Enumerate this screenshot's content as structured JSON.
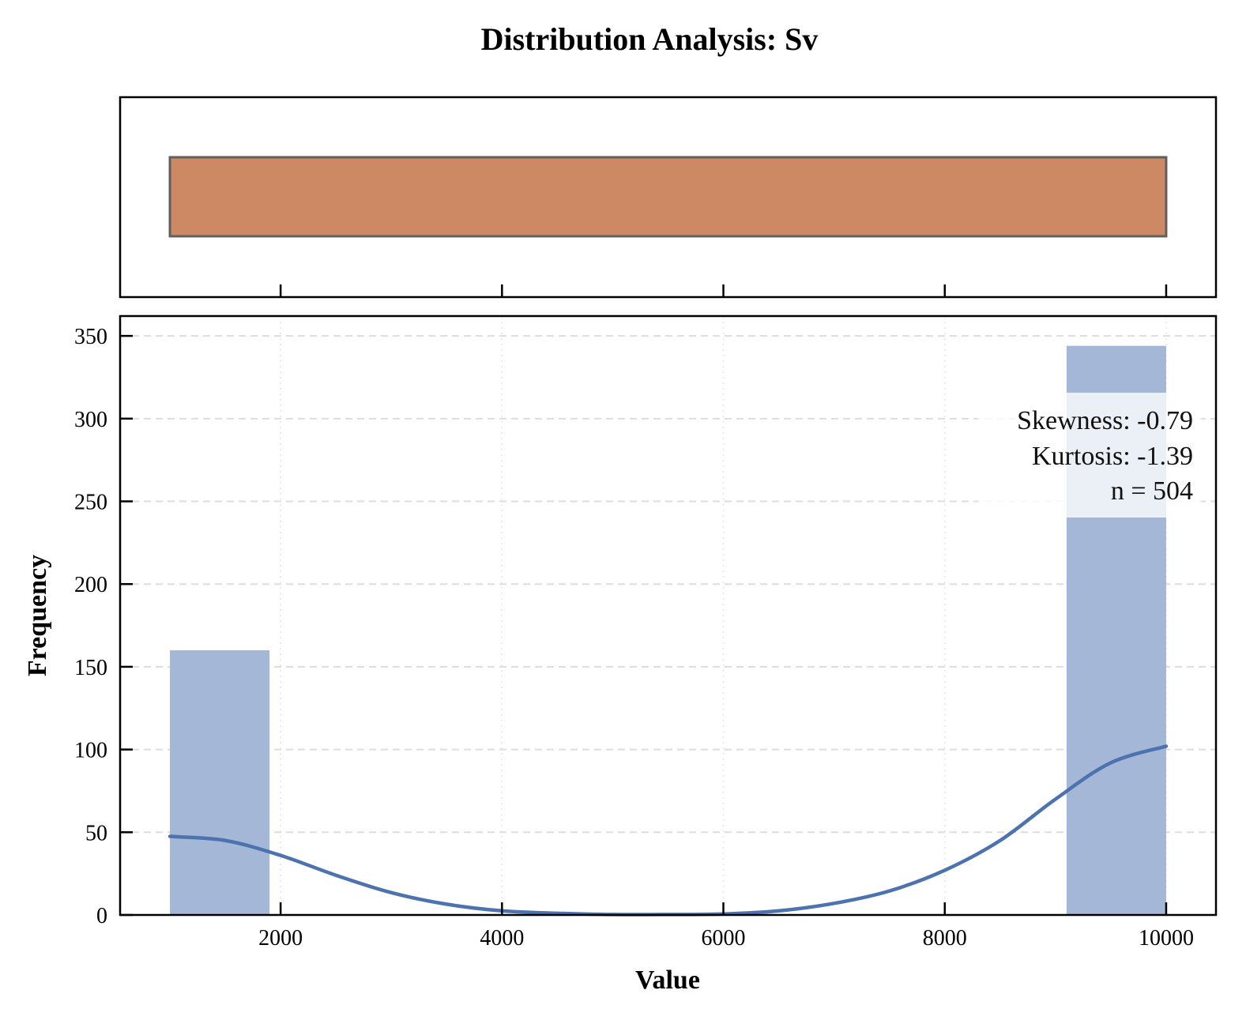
{
  "chart_data": [
    {
      "type": "box",
      "box": {
        "q1": 1000,
        "median": 10000,
        "q3": 10000,
        "whisker_low": 1000,
        "whisker_high": 10000
      },
      "xlim": [
        550,
        10450
      ],
      "colors": {
        "fill": "#CC8963",
        "edge": "#5F5F5F"
      }
    },
    {
      "type": "bar",
      "title": "Distribution Analysis: Sv",
      "xlabel": "Value",
      "ylabel": "Frequency",
      "xlim": [
        550,
        10450
      ],
      "ylim": [
        0,
        362
      ],
      "x_ticks": [
        2000,
        4000,
        6000,
        8000,
        10000
      ],
      "y_ticks": [
        0,
        50,
        100,
        150,
        200,
        250,
        300,
        350
      ],
      "grid": true,
      "bars": [
        {
          "x0": 1000,
          "x1": 1900,
          "count": 160
        },
        {
          "x0": 9100,
          "x1": 10000,
          "count": 344
        }
      ],
      "kde": [
        [
          1000,
          47.5
        ],
        [
          1500,
          45
        ],
        [
          2000,
          36
        ],
        [
          2500,
          24
        ],
        [
          3000,
          13.5
        ],
        [
          3500,
          6.5
        ],
        [
          4000,
          2.5
        ],
        [
          4500,
          1
        ],
        [
          5000,
          0.3
        ],
        [
          5500,
          0.3
        ],
        [
          6000,
          0.6
        ],
        [
          6500,
          2.5
        ],
        [
          7000,
          7
        ],
        [
          7500,
          14.5
        ],
        [
          8000,
          27
        ],
        [
          8500,
          45
        ],
        [
          9000,
          70
        ],
        [
          9500,
          92
        ],
        [
          10000,
          102
        ]
      ],
      "stats_box": {
        "skewness": "Skewness: -0.79",
        "kurtosis": "Kurtosis: -1.39",
        "n": "n = 504",
        "placement": "upper-right"
      },
      "colors": {
        "bars": "#A5B7D6",
        "kde": "#4C72B0",
        "grid": "#DDDDDD"
      }
    }
  ]
}
